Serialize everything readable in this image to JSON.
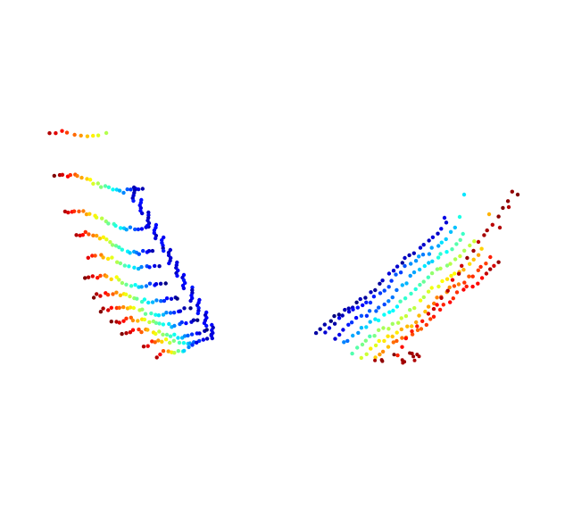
{
  "scene": {
    "background": "#ffffff",
    "colormap": [
      "#00007f",
      "#0000ff",
      "#0080ff",
      "#00ffff",
      "#80ff80",
      "#ffff00",
      "#ff8000",
      "#ff0000",
      "#7f0000"
    ],
    "groups": [
      {
        "name": "left-point-cluster"
      },
      {
        "name": "right-point-cluster"
      }
    ]
  }
}
